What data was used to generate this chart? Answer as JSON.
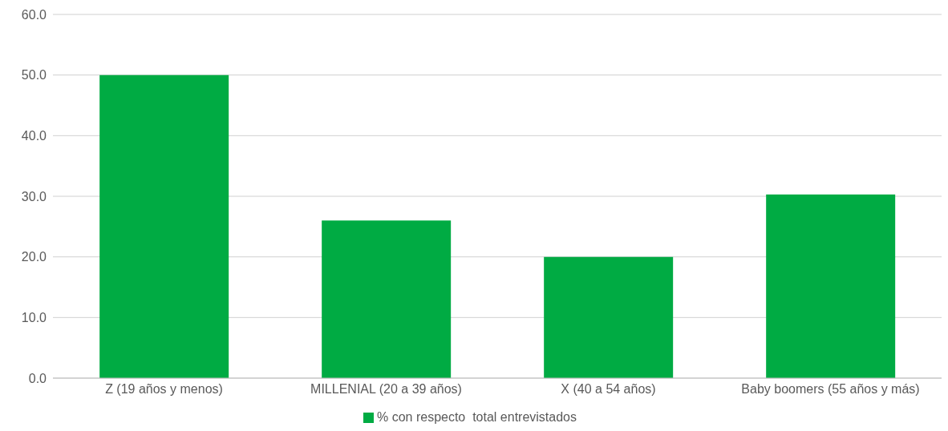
{
  "chart_data": {
    "type": "bar",
    "categories": [
      "Z (19 años y menos)",
      "MILLENIAL (20 a 39 años)",
      "X (40 a 54 años)",
      "Baby boomers (55 años y más)"
    ],
    "series": [
      {
        "name": "% con respecto  total entrevistados",
        "color": "#00ab43",
        "values": [
          50.0,
          26.0,
          20.0,
          30.3
        ]
      }
    ],
    "ylim": [
      0,
      60
    ],
    "yticks": [
      {
        "value": 0,
        "label": "0.0"
      },
      {
        "value": 10,
        "label": "10.0"
      },
      {
        "value": 20,
        "label": "20.0"
      },
      {
        "value": 30,
        "label": "30.0"
      },
      {
        "value": 40,
        "label": "40.0"
      },
      {
        "value": 50,
        "label": "50.0"
      },
      {
        "value": 60,
        "label": "60.0"
      }
    ],
    "grid": "y",
    "legend": "bottom"
  }
}
